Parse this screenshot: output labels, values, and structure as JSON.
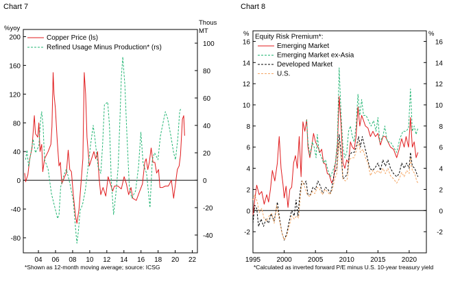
{
  "chart_data": [
    {
      "type": "line",
      "title": "Chart 7",
      "left_unit": "%yoy",
      "right_unit": "Thous MT",
      "footnote": "*Shown as 12-month moving average; source: ICSG",
      "xlim": [
        2002.23,
        2022.6
      ],
      "x_ticks": [
        2004,
        2006,
        2008,
        2010,
        2012,
        2014,
        2016,
        2018,
        2020,
        2022
      ],
      "x_tick_labels": [
        "04",
        "06",
        "08",
        "10",
        "12",
        "14",
        "16",
        "18",
        "20",
        "22"
      ],
      "ylim_left": [
        -101,
        210
      ],
      "y_ticks_left": [
        -80,
        -40,
        0,
        40,
        80,
        120,
        160,
        200
      ],
      "ylim_right": [
        -53,
        110
      ],
      "y_ticks_right": [
        -40,
        -20,
        0,
        20,
        40,
        60,
        80,
        100
      ],
      "grid": false,
      "legend": "top-left",
      "series": [
        {
          "name": "Copper Price (ls)",
          "axis": "left",
          "color": "#e0191b",
          "dash": "solid",
          "x": [
            2002.39,
            2002.5,
            2002.77,
            2002.98,
            2003.25,
            2003.52,
            2003.65,
            2003.92,
            2004.05,
            2004.19,
            2004.38,
            2004.51,
            2004.72,
            2005.13,
            2005.45,
            2005.58,
            2005.72,
            2005.82,
            2005.98,
            2006.2,
            2006.41,
            2006.57,
            2006.73,
            2007.06,
            2007.27,
            2007.48,
            2007.67,
            2007.86,
            2008.08,
            2008.34,
            2008.5,
            2008.75,
            2009.01,
            2009.2,
            2009.36,
            2009.52,
            2009.68,
            2009.95,
            2010.22,
            2010.49,
            2010.7,
            2010.92,
            2011.08,
            2011.29,
            2011.56,
            2011.88,
            2012.15,
            2012.42,
            2012.68,
            2012.9,
            2013.3,
            2013.7,
            2014.03,
            2014.29,
            2014.56,
            2014.83,
            2015.04,
            2015.45,
            2015.85,
            2016.17,
            2016.44,
            2016.6,
            2016.79,
            2016.97,
            2017.19,
            2017.4,
            2017.62,
            2017.83,
            2018.05,
            2018.21,
            2018.53,
            2018.85,
            2019.2,
            2019.55,
            2019.82,
            2020.03,
            2020.25,
            2020.46,
            2020.62,
            2020.84,
            2021.0,
            2021.1
          ],
          "y": [
            10,
            -2,
            8,
            30,
            45,
            90,
            65,
            60,
            80,
            40,
            50,
            12,
            30,
            40,
            50,
            75,
            150,
            120,
            100,
            55,
            20,
            25,
            -5,
            5,
            10,
            42,
            15,
            12,
            -20,
            -50,
            -60,
            -40,
            0,
            30,
            150,
            120,
            60,
            20,
            30,
            40,
            30,
            40,
            5,
            -20,
            -10,
            -22,
            5,
            -5,
            -15,
            -8,
            -8,
            -12,
            5,
            -5,
            -20,
            -10,
            -25,
            -28,
            -15,
            -5,
            25,
            30,
            15,
            25,
            45,
            25,
            25,
            10,
            15,
            -10,
            -10,
            -8,
            -8,
            0,
            -25,
            -5,
            15,
            20,
            35,
            85,
            90,
            62
          ]
        },
        {
          "name": "Refined Usage Minus Production* (rs)",
          "axis": "right",
          "color": "#22b573",
          "dash": "dashed",
          "x": [
            2002.5,
            2002.66,
            2002.85,
            2003.12,
            2003.38,
            2003.65,
            2004.05,
            2004.27,
            2004.38,
            2004.54,
            2004.72,
            2005.13,
            2005.53,
            2005.93,
            2006.25,
            2006.41,
            2006.6,
            2006.87,
            2007.27,
            2007.67,
            2008.08,
            2008.34,
            2008.5,
            2008.66,
            2008.88,
            2009.15,
            2009.47,
            2009.82,
            2010.08,
            2010.41,
            2010.62,
            2010.97,
            2011.29,
            2011.5,
            2011.72,
            2012.1,
            2012.31,
            2012.52,
            2012.79,
            2013.06,
            2013.33,
            2013.54,
            2013.7,
            2013.87,
            2014.11,
            2014.37,
            2014.64,
            2014.91,
            2015.36,
            2015.71,
            2015.98,
            2016.25,
            2016.65,
            2017.05,
            2017.32,
            2017.59,
            2017.99,
            2018.26,
            2018.58,
            2018.85,
            2019.12,
            2019.47,
            2019.82,
            2020.03,
            2020.3,
            2020.52,
            2020.68
          ],
          "y": [
            15,
            22,
            10,
            20,
            30,
            20,
            25,
            45,
            50,
            40,
            15,
            8,
            -10,
            -20,
            -28,
            -25,
            -5,
            2,
            8,
            -2,
            -15,
            -35,
            -46,
            -38,
            -22,
            -18,
            -8,
            10,
            25,
            40,
            30,
            10,
            5,
            25,
            55,
            57,
            40,
            0,
            -25,
            -10,
            10,
            45,
            75,
            90,
            70,
            30,
            -5,
            -13,
            -8,
            10,
            35,
            12,
            5,
            -20,
            15,
            20,
            15,
            32,
            42,
            50,
            45,
            33,
            20,
            15,
            30,
            50,
            53
          ]
        }
      ]
    },
    {
      "type": "line",
      "title": "Chart 8",
      "left_unit": "%",
      "right_unit": "%",
      "legend_title": "Equity Risk Premium*:",
      "footnote": "*Calculated as inverted forward P/E minus U.S. 10-year treasury yield",
      "xlim": [
        1995,
        2022.75
      ],
      "x_ticks": [
        1995,
        2000,
        2005,
        2010,
        2015,
        2020
      ],
      "x_tick_labels": [
        "1995",
        "2000",
        "2005",
        "2010",
        "2015",
        "2020"
      ],
      "ylim": [
        -4,
        17
      ],
      "y_ticks": [
        -2,
        0,
        2,
        4,
        6,
        8,
        10,
        12,
        14,
        16
      ],
      "grid": false,
      "legend": "top-left",
      "series": [
        {
          "name": "Emerging Market",
          "color": "#e0191b",
          "dash": "solid",
          "x": [
            1995.0,
            1995.4,
            1995.6,
            1996.0,
            1996.4,
            1996.8,
            1997.2,
            1997.5,
            1997.8,
            1998.1,
            1998.5,
            1998.9,
            1999.2,
            1999.5,
            1999.8,
            2000.0,
            2000.3,
            2000.6,
            2000.9,
            2001.2,
            2001.5,
            2001.8,
            2002.1,
            2002.4,
            2002.7,
            2003.0,
            2003.3,
            2003.6,
            2003.8,
            2004.1,
            2004.4,
            2004.7,
            2005.0,
            2005.4,
            2005.7,
            2006.0,
            2006.3,
            2006.6,
            2006.9,
            2007.2,
            2007.6,
            2007.9,
            2008.2,
            2008.5,
            2008.8,
            2009.1,
            2009.4,
            2009.7,
            2010.0,
            2010.3,
            2010.6,
            2010.9,
            2011.2,
            2011.5,
            2011.8,
            2012.1,
            2012.4,
            2012.7,
            2013.0,
            2013.4,
            2013.8,
            2014.2,
            2014.6,
            2015.0,
            2015.4,
            2015.8,
            2016.2,
            2016.6,
            2017.0,
            2017.5,
            2018.0,
            2018.4,
            2018.8,
            2019.2,
            2019.5,
            2019.9,
            2020.2,
            2020.5,
            2020.8,
            2021.1,
            2021.4
          ],
          "y": [
            -0.4,
            1.5,
            2.4,
            1.5,
            1.8,
            0.6,
            1.5,
            0.8,
            2.0,
            3.8,
            2.8,
            4.5,
            7.0,
            4.0,
            2.5,
            1.2,
            2.3,
            0.3,
            2.0,
            2.2,
            4.5,
            5.2,
            4.0,
            7.0,
            3.2,
            8.4,
            7.5,
            8.6,
            6.0,
            5.0,
            6.0,
            7.3,
            6.5,
            6.0,
            5.5,
            5.8,
            4.5,
            4.4,
            3.5,
            3.4,
            2.6,
            3.0,
            4.5,
            6.0,
            10.8,
            8.0,
            4.5,
            4.0,
            4.8,
            4.5,
            6.5,
            6.0,
            5.8,
            7.0,
            9.8,
            8.0,
            9.0,
            8.5,
            8.0,
            7.8,
            7.0,
            7.5,
            7.0,
            7.3,
            6.2,
            7.0,
            7.0,
            6.5,
            6.0,
            5.8,
            5.0,
            5.8,
            6.8,
            6.0,
            7.0,
            6.0,
            8.8,
            6.0,
            6.5,
            5.0,
            5.5
          ]
        },
        {
          "name": "Emerging Market ex-Asia",
          "color": "#22b573",
          "dash": "dashed",
          "x": [
            2003.6,
            2003.8,
            2004.1,
            2004.5,
            2004.8,
            2005.1,
            2005.3,
            2005.6,
            2006.0,
            2006.3,
            2006.6,
            2007.0,
            2007.4,
            2007.8,
            2008.2,
            2008.5,
            2008.8,
            2009.1,
            2009.4,
            2009.7,
            2010.0,
            2010.3,
            2010.6,
            2010.9,
            2011.2,
            2011.5,
            2011.8,
            2012.1,
            2012.4,
            2012.7,
            2013.1,
            2013.5,
            2013.9,
            2014.3,
            2014.7,
            2015.0,
            2015.3,
            2015.8,
            2016.1,
            2016.5,
            2017.0,
            2017.5,
            2018.0,
            2018.5,
            2019.0,
            2019.5,
            2019.9,
            2020.2,
            2020.5,
            2020.8,
            2021.1,
            2021.4
          ],
          "y": [
            8.6,
            6.5,
            5.2,
            6.5,
            6.0,
            5.0,
            7.2,
            5.5,
            5.0,
            4.5,
            4.8,
            3.8,
            3.2,
            3.8,
            4.5,
            6.5,
            13.5,
            9.0,
            6.0,
            5.0,
            5.5,
            7.5,
            8.0,
            7.0,
            6.5,
            8.0,
            11.0,
            9.0,
            10.5,
            9.0,
            9.0,
            8.5,
            8.0,
            8.5,
            7.5,
            8.8,
            6.5,
            7.0,
            8.0,
            6.5,
            6.5,
            6.0,
            5.5,
            6.8,
            7.5,
            7.5,
            7.8,
            11.5,
            7.5,
            8.0,
            7.2,
            7.8
          ]
        },
        {
          "name": "Developed Market",
          "color": "#000000",
          "dash": "dashed",
          "x": [
            1995.0,
            1995.3,
            1995.6,
            1995.9,
            1996.3,
            1996.7,
            1997.1,
            1997.5,
            1997.9,
            1998.4,
            1998.9,
            1999.2,
            1999.6,
            2000.0,
            2000.4,
            2000.8,
            2001.2,
            2001.6,
            2001.9,
            2002.2,
            2002.5,
            2002.8,
            2003.2,
            2003.5,
            2003.8,
            2004.2,
            2004.6,
            2005.0,
            2005.4,
            2005.8,
            2006.2,
            2006.6,
            2007.0,
            2007.4,
            2007.7,
            2008.0,
            2008.4,
            2008.8,
            2009.1,
            2009.4,
            2009.8,
            2010.1,
            2010.4,
            2010.8,
            2011.2,
            2011.6,
            2011.9,
            2012.2,
            2012.5,
            2012.9,
            2013.3,
            2013.7,
            2014.1,
            2014.5,
            2015.0,
            2015.4,
            2015.8,
            2016.2,
            2016.6,
            2017.0,
            2017.5,
            2018.0,
            2018.4,
            2018.8,
            2019.2,
            2019.6,
            2020.0,
            2020.2,
            2020.5,
            2020.9,
            2021.2,
            2021.4
          ],
          "y": [
            -1.2,
            0.5,
            0.2,
            -1.5,
            -0.8,
            -1.5,
            -0.8,
            -1.2,
            -0.3,
            -1.0,
            0.8,
            -0.5,
            -2.0,
            -2.8,
            -2.2,
            -1.0,
            0.0,
            -0.5,
            1.0,
            -0.5,
            1.5,
            2.8,
            2.5,
            2.8,
            1.5,
            1.5,
            2.2,
            2.0,
            2.8,
            2.3,
            1.6,
            2.2,
            2.0,
            1.6,
            2.4,
            3.5,
            4.0,
            7.2,
            5.5,
            3.0,
            3.2,
            3.5,
            5.2,
            5.5,
            5.5,
            6.2,
            7.0,
            6.0,
            7.0,
            6.0,
            5.0,
            4.0,
            3.8,
            4.0,
            4.5,
            3.8,
            4.8,
            4.2,
            4.8,
            4.0,
            3.5,
            3.2,
            3.5,
            4.5,
            4.0,
            4.5,
            4.0,
            5.5,
            4.2,
            4.0,
            3.5,
            3.2
          ]
        },
        {
          "name": "U.S.",
          "color": "#f4a460",
          "dash": "dashed",
          "x": [
            1995.0,
            1995.3,
            1995.7,
            1996.0,
            1996.4,
            1996.8,
            1997.2,
            1997.6,
            1998.0,
            1998.4,
            1998.8,
            1999.2,
            1999.6,
            2000.0,
            2000.4,
            2000.8,
            2001.2,
            2001.6,
            2002.0,
            2002.3,
            2002.6,
            2002.9,
            2003.3,
            2003.7,
            2004.1,
            2004.5,
            2004.9,
            2005.3,
            2005.7,
            2006.1,
            2006.5,
            2006.9,
            2007.3,
            2007.7,
            2008.1,
            2008.4,
            2008.8,
            2009.1,
            2009.4,
            2009.8,
            2010.1,
            2010.4,
            2010.8,
            2011.2,
            2011.6,
            2011.9,
            2012.2,
            2012.6,
            2013.0,
            2013.4,
            2013.8,
            2014.2,
            2014.6,
            2015.0,
            2015.4,
            2015.8,
            2016.2,
            2016.6,
            2017.0,
            2017.5,
            2018.0,
            2018.4,
            2018.8,
            2019.2,
            2019.6,
            2020.0,
            2020.2,
            2020.5,
            2020.9,
            2021.2,
            2021.4
          ],
          "y": [
            1.0,
            1.5,
            0.8,
            -0.2,
            0.2,
            -0.8,
            -1.0,
            -0.5,
            -0.3,
            -1.2,
            0.5,
            -0.8,
            -2.0,
            -2.8,
            -2.4,
            -1.5,
            -0.5,
            -0.8,
            -0.5,
            -0.7,
            1.5,
            2.8,
            2.2,
            1.5,
            1.3,
            1.8,
            1.6,
            2.2,
            2.0,
            1.5,
            2.0,
            1.8,
            1.5,
            2.0,
            3.0,
            3.5,
            6.5,
            5.0,
            3.0,
            2.8,
            3.0,
            4.8,
            5.0,
            5.0,
            5.8,
            6.5,
            5.5,
            5.8,
            5.0,
            4.5,
            3.3,
            3.8,
            3.5,
            3.8,
            3.5,
            4.0,
            3.5,
            4.0,
            3.3,
            3.0,
            2.6,
            3.0,
            3.6,
            3.2,
            3.8,
            3.5,
            5.0,
            3.8,
            3.5,
            2.8,
            2.6
          ]
        }
      ]
    }
  ]
}
